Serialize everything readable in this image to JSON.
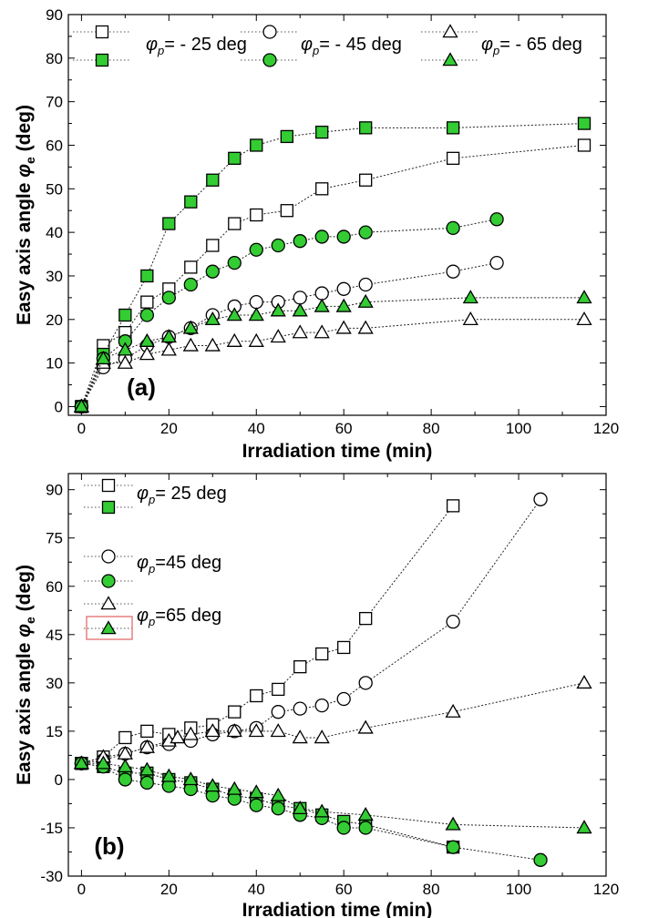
{
  "chart_data": [
    {
      "panel": "(a)",
      "type": "line",
      "xlabel": "Irradiation time (min)",
      "ylabel": "Easy axis angle φe (deg)",
      "ylabel_main": "Easy axis angle ",
      "ylabel_symbol": "φ",
      "ylabel_sub": "e",
      "ylabel_unit": " (deg)",
      "xlim": [
        -3,
        120
      ],
      "ylim": [
        -2,
        90
      ],
      "xticks": [
        0,
        20,
        40,
        60,
        80,
        100,
        120
      ],
      "yticks": [
        0,
        10,
        20,
        30,
        40,
        50,
        60,
        70,
        80,
        90
      ],
      "legend_placement": "top",
      "legend_groups": [
        {
          "symbol": "φ",
          "sub": "p",
          "text": "= - 25 deg",
          "marker": "square"
        },
        {
          "symbol": "φ",
          "sub": "p",
          "text": "= - 45 deg",
          "marker": "circle"
        },
        {
          "symbol": "φ",
          "sub": "p",
          "text": "= - 65 deg",
          "marker": "triangle"
        }
      ],
      "series": [
        {
          "marker": "square",
          "fill": "open",
          "x": [
            0,
            5,
            10,
            15,
            20,
            25,
            30,
            35,
            40,
            47,
            55,
            65,
            85,
            115
          ],
          "y": [
            0,
            14,
            17,
            24,
            27,
            32,
            37,
            42,
            44,
            45,
            50,
            52,
            57,
            60
          ]
        },
        {
          "marker": "square",
          "fill": "green",
          "x": [
            0,
            5,
            10,
            15,
            20,
            25,
            30,
            35,
            40,
            47,
            55,
            65,
            85,
            115
          ],
          "y": [
            0,
            12,
            21,
            30,
            42,
            47,
            52,
            57,
            60,
            62,
            63,
            64,
            64,
            65
          ]
        },
        {
          "marker": "circle",
          "fill": "open",
          "x": [
            0,
            5,
            10,
            15,
            20,
            25,
            30,
            35,
            40,
            45,
            50,
            55,
            60,
            65,
            85,
            95
          ],
          "y": [
            0,
            9,
            11,
            14,
            16,
            18,
            21,
            23,
            24,
            24,
            25,
            26,
            27,
            28,
            31,
            33
          ]
        },
        {
          "marker": "circle",
          "fill": "green",
          "x": [
            0,
            5,
            10,
            15,
            20,
            25,
            30,
            35,
            40,
            45,
            50,
            55,
            60,
            65,
            85,
            95
          ],
          "y": [
            0,
            11,
            15,
            21,
            25,
            28,
            31,
            33,
            36,
            37,
            38,
            39,
            39,
            40,
            41,
            43
          ]
        },
        {
          "marker": "triangle",
          "fill": "open",
          "x": [
            0,
            5,
            10,
            15,
            20,
            25,
            30,
            35,
            40,
            45,
            50,
            55,
            60,
            65,
            89,
            115
          ],
          "y": [
            0,
            10,
            10,
            12,
            13,
            14,
            14,
            15,
            15,
            16,
            17,
            17,
            18,
            18,
            20,
            20
          ]
        },
        {
          "marker": "triangle",
          "fill": "green",
          "x": [
            0,
            5,
            10,
            15,
            20,
            25,
            30,
            35,
            40,
            45,
            50,
            55,
            60,
            65,
            89,
            115
          ],
          "y": [
            0,
            11,
            13,
            15,
            16,
            18,
            20,
            21,
            21,
            22,
            22,
            23,
            23,
            24,
            25,
            25
          ]
        }
      ]
    },
    {
      "panel": "(b)",
      "type": "line",
      "xlabel": "Irradiation time (min)",
      "ylabel": "Easy axis angle φe (deg)",
      "ylabel_main": "Easy axis angle ",
      "ylabel_symbol": "φ",
      "ylabel_sub": "e",
      "ylabel_unit": " (deg)",
      "xlim": [
        -3,
        120
      ],
      "ylim": [
        -30,
        95
      ],
      "xticks": [
        0,
        20,
        40,
        60,
        80,
        100,
        120
      ],
      "yticks": [
        -30,
        -15,
        0,
        15,
        30,
        45,
        60,
        75,
        90
      ],
      "legend_placement": "left",
      "legend_groups": [
        {
          "symbol": "φ",
          "sub": "p",
          "text": "= 25 deg",
          "marker": "square"
        },
        {
          "symbol": "φ",
          "sub": "p",
          "text": "=45 deg",
          "marker": "circle"
        },
        {
          "symbol": "φ",
          "sub": "p",
          "text": "=65 deg",
          "marker": "triangle"
        }
      ],
      "series": [
        {
          "marker": "square",
          "fill": "open",
          "x": [
            0,
            5,
            10,
            15,
            20,
            25,
            30,
            35,
            40,
            45,
            50,
            55,
            60,
            65,
            85
          ],
          "y": [
            5,
            7,
            13,
            15,
            14,
            16,
            17,
            21,
            26,
            28,
            35,
            39,
            41,
            50,
            85
          ]
        },
        {
          "marker": "square",
          "fill": "green",
          "x": [
            0,
            5,
            10,
            15,
            20,
            25,
            30,
            35,
            40,
            45,
            50,
            55,
            60,
            65,
            85
          ],
          "y": [
            5,
            4,
            2,
            2,
            0,
            -1,
            -3,
            -5,
            -6,
            -8,
            -9,
            -11,
            -13,
            -14,
            -21
          ]
        },
        {
          "marker": "circle",
          "fill": "open",
          "x": [
            0,
            5,
            10,
            15,
            20,
            25,
            30,
            35,
            40,
            45,
            50,
            55,
            60,
            65,
            85,
            105
          ],
          "y": [
            5,
            6,
            8,
            10,
            11,
            12,
            14,
            15,
            16,
            21,
            22,
            23,
            25,
            30,
            49,
            87
          ]
        },
        {
          "marker": "circle",
          "fill": "green",
          "x": [
            0,
            5,
            10,
            15,
            20,
            25,
            30,
            35,
            40,
            45,
            50,
            55,
            60,
            65,
            85,
            105
          ],
          "y": [
            5,
            4,
            0,
            -1,
            -2,
            -3,
            -5,
            -6,
            -8,
            -9,
            -11,
            -12,
            -15,
            -15,
            -21,
            -25
          ]
        },
        {
          "marker": "triangle",
          "fill": "open",
          "x": [
            0,
            5,
            10,
            15,
            20,
            22,
            25,
            30,
            35,
            40,
            45,
            50,
            55,
            65,
            85,
            115
          ],
          "y": [
            5,
            7,
            8,
            10,
            12,
            13,
            14,
            15,
            15,
            15,
            15,
            13,
            13,
            16,
            21,
            30
          ]
        },
        {
          "marker": "triangle",
          "fill": "green",
          "x": [
            0,
            5,
            10,
            15,
            20,
            25,
            30,
            35,
            40,
            45,
            50,
            55,
            65,
            85,
            115
          ],
          "y": [
            5,
            5,
            4,
            3,
            1,
            0,
            -2,
            -3,
            -4,
            -5,
            -9,
            -10,
            -11,
            -14,
            -15
          ]
        }
      ]
    }
  ],
  "colors": {
    "green": "#33cc33",
    "open": "#ffffff",
    "stroke": "#000000",
    "highlight_box": "#e06060"
  }
}
